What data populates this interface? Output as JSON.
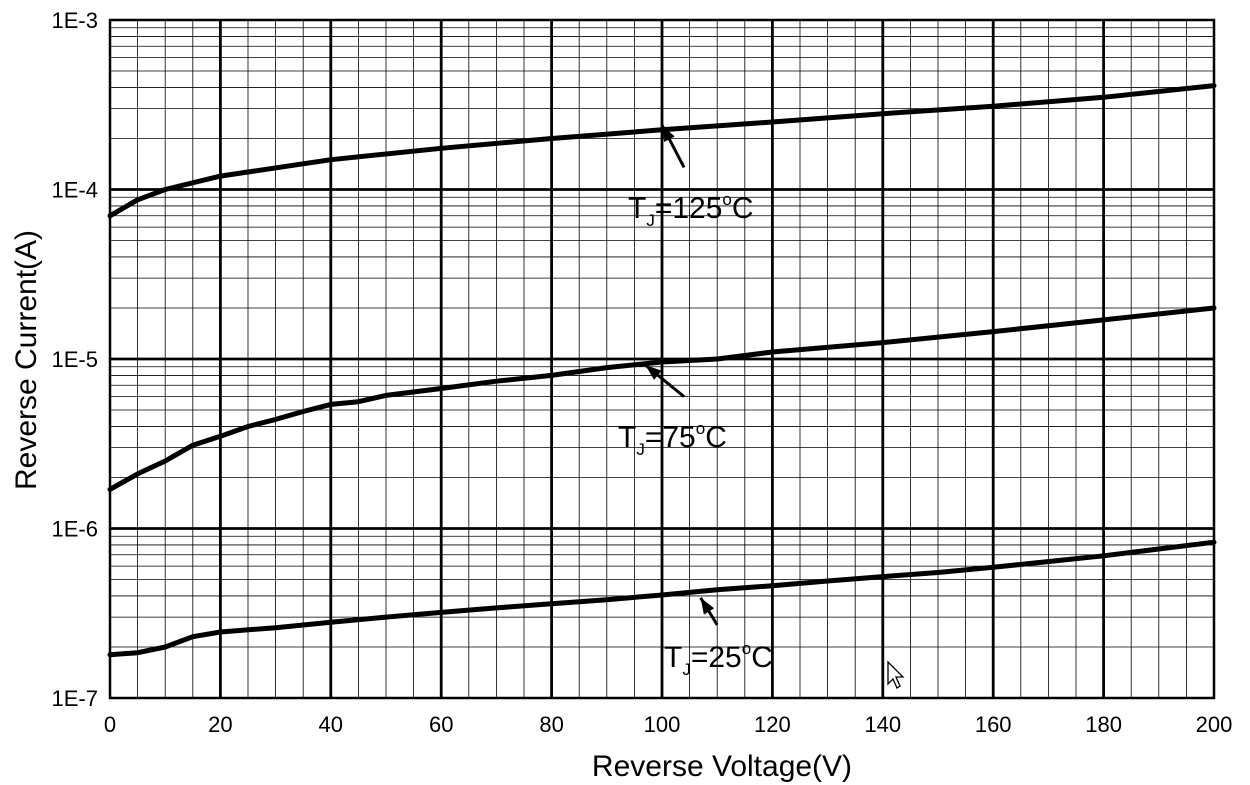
{
  "chart_data": {
    "type": "line",
    "xlabel": "Reverse Voltage(V)",
    "ylabel": "Reverse  Current(A)",
    "xlim": [
      0,
      200
    ],
    "ylim": [
      1e-07,
      0.001
    ],
    "yscale": "log",
    "grid": true,
    "x_ticks": [
      "0",
      "20",
      "40",
      "60",
      "80",
      "100",
      "120",
      "140",
      "160",
      "180",
      "200"
    ],
    "y_ticks": [
      "1E-7",
      "1E-6",
      "1E-5",
      "1E-4",
      "1E-3"
    ],
    "series": [
      {
        "name": "TJ=125°C",
        "label_main": "T",
        "label_sub": "J",
        "label_rest": "=125",
        "label_unit": "C",
        "x": [
          0,
          5,
          10,
          20,
          40,
          60,
          80,
          100,
          120,
          140,
          160,
          180,
          200
        ],
        "y": [
          7e-05,
          8.7e-05,
          0.0001,
          0.00012,
          0.00015,
          0.000175,
          0.0002,
          0.000225,
          0.00025,
          0.00028,
          0.00031,
          0.00035,
          0.00041
        ]
      },
      {
        "name": "TJ=75°C",
        "label_main": "T",
        "label_sub": "J",
        "label_rest": "=75",
        "label_unit": "C",
        "x": [
          0,
          5,
          10,
          15,
          20,
          25,
          30,
          35,
          40,
          45,
          50,
          60,
          70,
          80,
          90,
          100,
          110,
          120,
          140,
          160,
          180,
          200
        ],
        "y": [
          1.7e-06,
          2.1e-06,
          2.5e-06,
          3.1e-06,
          3.5e-06,
          4e-06,
          4.4e-06,
          4.9e-06,
          5.4e-06,
          5.6e-06,
          6.1e-06,
          6.7e-06,
          7.4e-06,
          8e-06,
          8.9e-06,
          9.6e-06,
          1e-05,
          1.1e-05,
          1.25e-05,
          1.45e-05,
          1.7e-05,
          2e-05
        ]
      },
      {
        "name": "TJ=25°C",
        "label_main": "T",
        "label_sub": "J",
        "label_rest": "=25",
        "label_unit": "C",
        "x": [
          0,
          5,
          10,
          15,
          20,
          30,
          40,
          50,
          60,
          70,
          80,
          90,
          100,
          110,
          120,
          130,
          140,
          150,
          160,
          180,
          200
        ],
        "y": [
          1.8e-07,
          1.85e-07,
          2e-07,
          2.3e-07,
          2.45e-07,
          2.6e-07,
          2.8e-07,
          3e-07,
          3.2e-07,
          3.4e-07,
          3.6e-07,
          3.8e-07,
          4.05e-07,
          4.35e-07,
          4.6e-07,
          4.9e-07,
          5.2e-07,
          5.5e-07,
          5.9e-07,
          6.9e-07,
          8.3e-07
        ]
      }
    ],
    "annotations": [
      {
        "series": 0,
        "arrow_from": [
          104,
          0.000135
        ],
        "arrow_to": [
          100,
          0.00024
        ]
      },
      {
        "series": 1,
        "arrow_from": [
          104,
          6e-06
        ],
        "arrow_to": [
          97,
          9.2e-06
        ]
      },
      {
        "series": 2,
        "arrow_from": [
          110,
          2.7e-07
        ],
        "arrow_to": [
          107,
          3.9e-07
        ]
      }
    ]
  },
  "icons": {
    "cursor": "mouse-pointer-icon"
  }
}
